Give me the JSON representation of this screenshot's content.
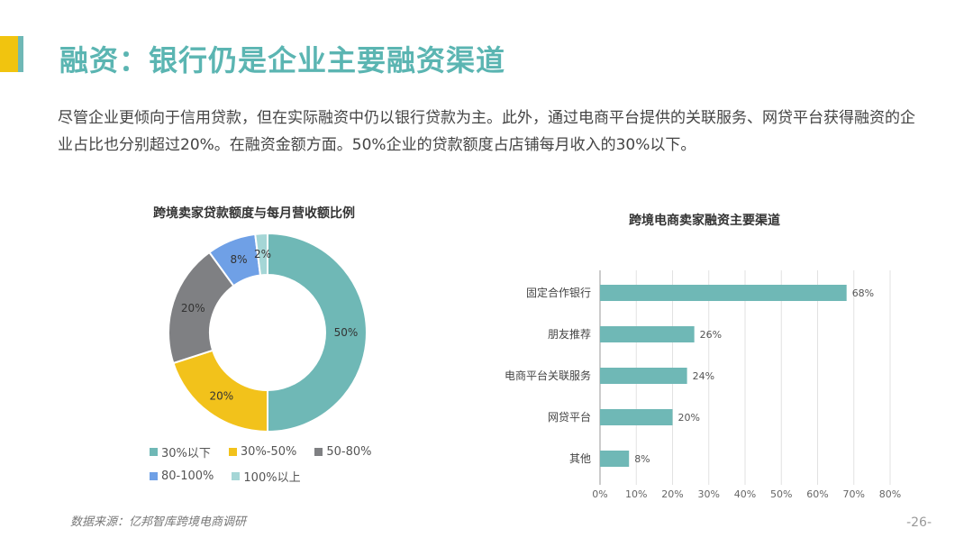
{
  "header": {
    "title": "融资：银行仍是企业主要融资渠道"
  },
  "intro": "尽管企业更倾向于信用贷款，但在实际融资中仍以银行贷款为主。此外，通过电商平台提供的关联服务、网贷平台获得融资的企业占比也分别超过20%。在融资金额方面。50%企业的贷款额度占店铺每月收入的30%以下。",
  "footer": {
    "source": "数据来源：亿邦智库跨境电商调研",
    "page": "-26-"
  },
  "colors": {
    "accent_yellow": "#f1c40f",
    "accent_teal": "#5bb5b2"
  },
  "chart_data": [
    {
      "type": "pie",
      "title": "跨境卖家贷款额度与每月营收额比例",
      "donut": true,
      "categories": [
        "30%以下",
        "30%-50%",
        "50-80%",
        "80-100%",
        "100%以上"
      ],
      "values": [
        50,
        20,
        20,
        8,
        2
      ],
      "labels": [
        "50%",
        "20%",
        "20%",
        "8%",
        "2%"
      ],
      "colors": [
        "#6fb8b6",
        "#f2c21b",
        "#7f8083",
        "#6fa0e6",
        "#a5d6d6"
      ],
      "legend": "bottom"
    },
    {
      "type": "bar",
      "orientation": "horizontal",
      "title": "跨境电商卖家融资主要渠道",
      "categories": [
        "固定合作银行",
        "朋友推荐",
        "电商平台关联服务",
        "网贷平台",
        "其他"
      ],
      "values": [
        68,
        26,
        24,
        20,
        8
      ],
      "labels": [
        "68%",
        "26%",
        "24%",
        "20%",
        "8%"
      ],
      "xlim": [
        0,
        80
      ],
      "xticks": [
        "0%",
        "10%",
        "20%",
        "30%",
        "40%",
        "50%",
        "60%",
        "70%",
        "80%"
      ],
      "grid": true,
      "color": "#6fb8b6"
    }
  ]
}
